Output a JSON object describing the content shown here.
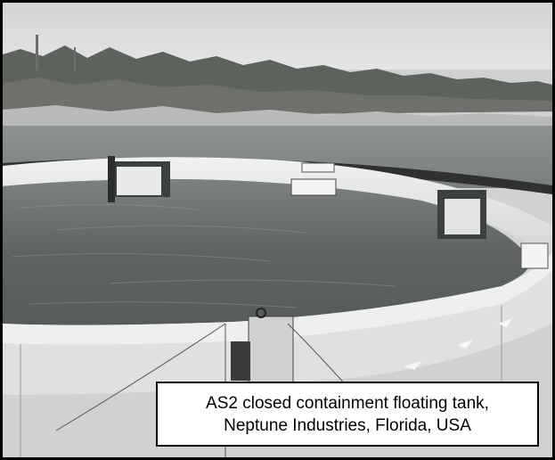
{
  "photo": {
    "subject": "circular floating containment tank on open water",
    "colors": {
      "sky": "#d8d9da",
      "water": "#6f7272",
      "tank_wall": "#e6e7e8",
      "vegetation": "#5e625c",
      "frame": "#000000"
    }
  },
  "caption": {
    "line1": "AS2 closed containment floating tank,",
    "line2": "Neptune Industries, Florida, USA"
  }
}
